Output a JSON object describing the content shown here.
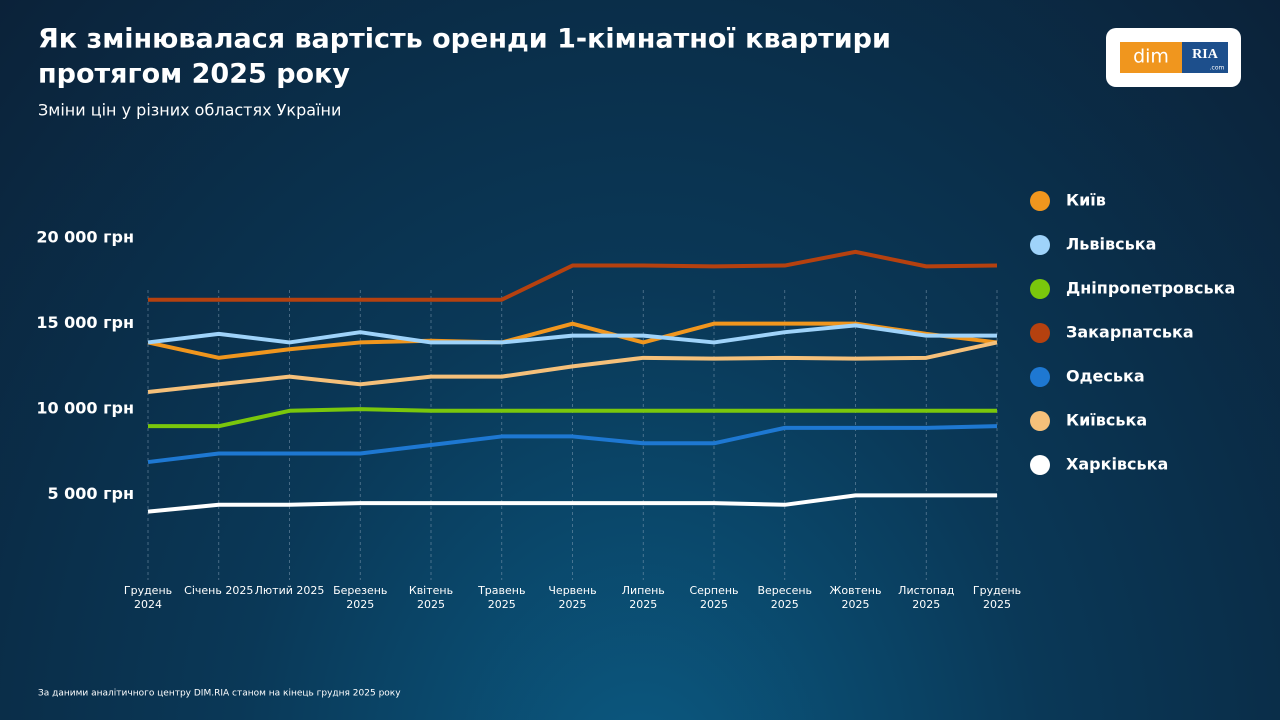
{
  "chart_data": {
    "type": "line",
    "title": [
      "Як змінювалася вартість оренди 1-кімнатної квартири",
      "протягом 2025 року"
    ],
    "subtitle": "Зміни цін у різних областях України",
    "source": "За даними аналітичного центру DIM.RIA станом на кінець грудня 2025 року",
    "categories": [
      "Грудень 2024",
      "Січень 2025",
      "Лютий 2025",
      "Березень 2025",
      "Квітень 2025",
      "Травень 2025",
      "Червень 2025",
      "Липень 2025",
      "Серпень 2025",
      "Вересень 2025",
      "Жовтень 2025",
      "Листопад 2025",
      "Грудень 2025"
    ],
    "ylim": [
      0,
      22000
    ],
    "yticks": [
      {
        "value": 5000,
        "label": "5 000 грн"
      },
      {
        "value": 10000,
        "label": "10 000 грн"
      },
      {
        "value": 15000,
        "label": "15 000 грн"
      },
      {
        "value": 20000,
        "label": "20 000 грн"
      }
    ],
    "grid": true,
    "legend": "right",
    "series": [
      {
        "name": "Київ",
        "color": "#f0961e",
        "values": [
          13900,
          13000,
          13500,
          13900,
          14000,
          13900,
          15000,
          13900,
          15000,
          15000,
          15000,
          14400,
          13900
        ]
      },
      {
        "name": "Львівська",
        "color": "#9fd3fa",
        "values": [
          13900,
          14400,
          13900,
          14500,
          13900,
          13900,
          14300,
          14300,
          13900,
          14500,
          14900,
          14300,
          14300
        ]
      },
      {
        "name": "Дніпропетровська",
        "color": "#7ac70c",
        "values": [
          9000,
          9000,
          9900,
          10000,
          9900,
          9900,
          9900,
          9900,
          9900,
          9900,
          9900,
          9900,
          9900
        ]
      },
      {
        "name": "Закарпатська",
        "color": "#b5410f",
        "values": [
          16400,
          16400,
          16400,
          16400,
          16400,
          16400,
          18400,
          18400,
          18350,
          18400,
          19200,
          18350,
          18400
        ]
      },
      {
        "name": "Одеська",
        "color": "#1e78d2",
        "values": [
          6900,
          7400,
          7400,
          7400,
          7900,
          8400,
          8400,
          8000,
          8000,
          8900,
          8900,
          8900,
          9000
        ]
      },
      {
        "name": "Київська",
        "color": "#f5c07a",
        "values": [
          11000,
          11450,
          11900,
          11450,
          11900,
          11900,
          12500,
          13000,
          12950,
          13000,
          12950,
          13000,
          13900
        ]
      },
      {
        "name": "Харківська",
        "color": "#ffffff",
        "values": [
          4000,
          4400,
          4400,
          4500,
          4500,
          4500,
          4500,
          4500,
          4500,
          4400,
          4950,
          4950,
          4950
        ]
      }
    ]
  },
  "logo": {
    "dim": "dim",
    "ria": "RIA",
    "com": ".com"
  }
}
